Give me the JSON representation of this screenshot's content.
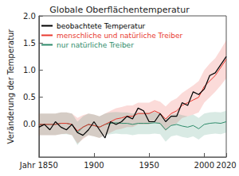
{
  "chart_data": {
    "type": "line",
    "title": "Globale Oberflächentemperatur",
    "y_label": "Veränderung der Temperatur",
    "x": [
      1850,
      1855,
      1860,
      1865,
      1870,
      1875,
      1880,
      1885,
      1890,
      1895,
      1900,
      1905,
      1910,
      1915,
      1920,
      1925,
      1930,
      1935,
      1940,
      1945,
      1950,
      1955,
      1960,
      1965,
      1970,
      1975,
      1980,
      1985,
      1990,
      1995,
      2000,
      2005,
      2010,
      2015,
      2020
    ],
    "xlim": [
      1850,
      2020
    ],
    "xticks": [
      {
        "value": 1850,
        "label": "Jahr 1850"
      },
      1900,
      1950,
      2000,
      2020
    ],
    "ylim": [
      -0.6,
      2.0
    ],
    "yticks": [
      {
        "value": 0,
        "label": "0.0"
      },
      0.5,
      {
        "value": 1,
        "label": "1.0"
      },
      1.5,
      {
        "value": 2,
        "label": "2.0"
      }
    ],
    "grid": false,
    "legend": "top-left",
    "series": [
      {
        "name": "beobachtete Temperatur",
        "color": "#000000",
        "values": [
          -0.05,
          0,
          -0.1,
          0.05,
          -0.05,
          -0.1,
          0,
          -0.15,
          -0.2,
          -0.1,
          0.05,
          -0.1,
          -0.25,
          0.05,
          0,
          0.05,
          0.15,
          0.1,
          0.3,
          0.25,
          0.05,
          0.05,
          0.2,
          0.05,
          0.15,
          0.15,
          0.4,
          0.35,
          0.6,
          0.55,
          0.65,
          0.9,
          0.95,
          1.1,
          1.25
        ]
      },
      {
        "name": "menschliche und natürliche Treiber",
        "color": "#e8392f",
        "values": [
          0,
          0,
          0,
          0,
          0.02,
          0.02,
          0,
          -0.12,
          -0.05,
          0,
          -0.02,
          -0.05,
          0,
          0.05,
          0.1,
          0.12,
          0.15,
          0.15,
          0.2,
          0.2,
          0.2,
          0.25,
          0.2,
          0.1,
          0.2,
          0.25,
          0.35,
          0.4,
          0.45,
          0.5,
          0.7,
          0.8,
          0.9,
          1.05,
          1.2
        ],
        "lower": [
          -0.2,
          -0.2,
          -0.2,
          -0.2,
          -0.18,
          -0.17,
          -0.2,
          -0.35,
          -0.27,
          -0.2,
          -0.22,
          -0.25,
          -0.2,
          -0.15,
          -0.1,
          -0.08,
          -0.05,
          -0.05,
          0,
          0,
          0,
          0.05,
          0,
          -0.12,
          -0.02,
          0.02,
          0.12,
          0.15,
          0.18,
          0.22,
          0.4,
          0.5,
          0.6,
          0.72,
          0.85
        ],
        "upper": [
          0.2,
          0.2,
          0.2,
          0.2,
          0.22,
          0.22,
          0.2,
          0.12,
          0.17,
          0.2,
          0.18,
          0.15,
          0.2,
          0.25,
          0.3,
          0.32,
          0.35,
          0.35,
          0.4,
          0.4,
          0.4,
          0.45,
          0.42,
          0.33,
          0.43,
          0.48,
          0.58,
          0.65,
          0.72,
          0.8,
          1.0,
          1.12,
          1.22,
          1.38,
          1.55
        ]
      },
      {
        "name": "nur natürliche Treiber",
        "color": "#2e8b6a",
        "values": [
          0,
          0,
          0,
          0,
          0.02,
          0.02,
          0,
          -0.15,
          -0.05,
          0,
          -0.02,
          -0.05,
          0,
          0.02,
          0.03,
          0.02,
          0.02,
          0,
          0.02,
          0.02,
          0.02,
          0.03,
          0.02,
          -0.1,
          -0.02,
          0,
          -0.03,
          -0.05,
          -0.02,
          -0.08,
          0,
          0.02,
          0.03,
          0.02,
          0.05
        ],
        "lower": [
          -0.2,
          -0.2,
          -0.2,
          -0.2,
          -0.18,
          -0.18,
          -0.2,
          -0.38,
          -0.25,
          -0.2,
          -0.22,
          -0.25,
          -0.2,
          -0.18,
          -0.17,
          -0.18,
          -0.18,
          -0.2,
          -0.18,
          -0.18,
          -0.18,
          -0.17,
          -0.18,
          -0.32,
          -0.22,
          -0.2,
          -0.23,
          -0.25,
          -0.22,
          -0.28,
          -0.2,
          -0.18,
          -0.17,
          -0.18,
          -0.15
        ],
        "upper": [
          0.2,
          0.2,
          0.2,
          0.2,
          0.22,
          0.22,
          0.2,
          0.05,
          0.15,
          0.2,
          0.18,
          0.15,
          0.2,
          0.22,
          0.23,
          0.22,
          0.22,
          0.2,
          0.22,
          0.22,
          0.22,
          0.23,
          0.22,
          0.1,
          0.18,
          0.2,
          0.17,
          0.15,
          0.18,
          0.12,
          0.2,
          0.22,
          0.23,
          0.22,
          0.25
        ]
      }
    ]
  }
}
